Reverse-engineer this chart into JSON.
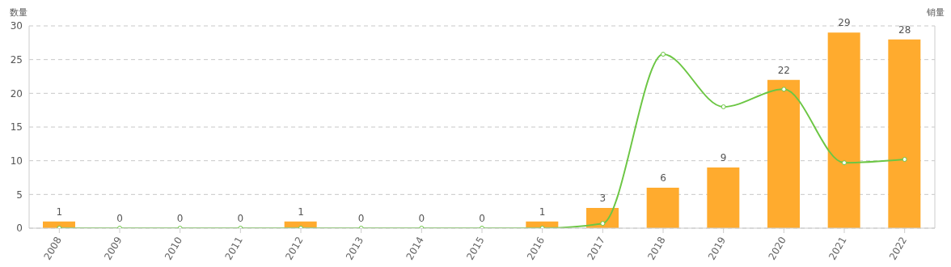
{
  "chart_data": {
    "type": "bar",
    "ylabel": "数量",
    "y2label": "销量",
    "categories": [
      "2008",
      "2009",
      "2010",
      "2011",
      "2012",
      "2013",
      "2014",
      "2015",
      "2016",
      "2017",
      "2018",
      "2019",
      "2020",
      "2021",
      "2022"
    ],
    "series": [
      {
        "color": "#ffab2e",
        "values": [
          1,
          0,
          0,
          0,
          1,
          0,
          0,
          0,
          1,
          3,
          6,
          9,
          22,
          29,
          28
        ],
        "value_labels": [
          "1",
          "0",
          "0",
          "0",
          "1",
          "0",
          "0",
          "0",
          "1",
          "3",
          "6",
          "9",
          "22",
          "29",
          "28"
        ]
      },
      {
        "type": "line",
        "color": "#6cc644",
        "values": [
          0,
          0,
          0,
          0,
          0,
          0,
          0,
          0,
          0,
          0.7,
          25.8,
          18,
          20.6,
          9.7,
          10.2
        ],
        "marker": "circle",
        "line_style": "solid"
      }
    ],
    "ylim": [
      0,
      30
    ],
    "yticks": [
      0,
      5,
      10,
      15,
      20,
      25,
      30
    ],
    "grid": "y"
  }
}
